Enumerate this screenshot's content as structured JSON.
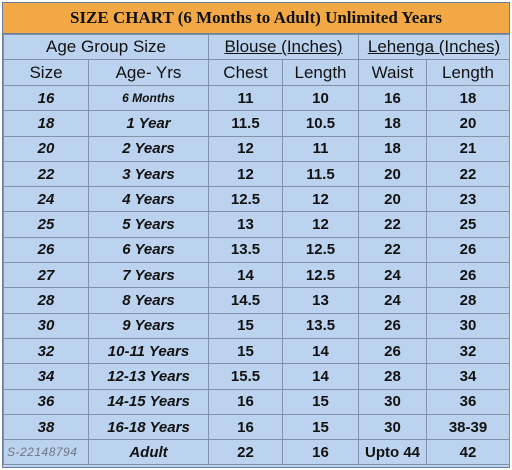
{
  "title": "SIZE CHART (6 Months to Adult) Unlimited Years",
  "groups": {
    "age": "Age Group Size",
    "blouse": "Blouse (Inches)",
    "lehenga": "Lehenga (Inches)"
  },
  "columns": {
    "size": "Size",
    "age": "Age- Yrs",
    "chest": "Chest",
    "blouse_length": "Length",
    "waist": "Waist",
    "lehenga_length": "Length"
  },
  "rows": [
    {
      "size": "16",
      "age": "6 Months",
      "chest": "11",
      "blouse_length": "10",
      "waist": "16",
      "lehenga_length": "18"
    },
    {
      "size": "18",
      "age": "1 Year",
      "chest": "11.5",
      "blouse_length": "10.5",
      "waist": "18",
      "lehenga_length": "20"
    },
    {
      "size": "20",
      "age": "2 Years",
      "chest": "12",
      "blouse_length": "11",
      "waist": "18",
      "lehenga_length": "21"
    },
    {
      "size": "22",
      "age": "3 Years",
      "chest": "12",
      "blouse_length": "11.5",
      "waist": "20",
      "lehenga_length": "22"
    },
    {
      "size": "24",
      "age": "4 Years",
      "chest": "12.5",
      "blouse_length": "12",
      "waist": "20",
      "lehenga_length": "23"
    },
    {
      "size": "25",
      "age": "5 Years",
      "chest": "13",
      "blouse_length": "12",
      "waist": "22",
      "lehenga_length": "25"
    },
    {
      "size": "26",
      "age": "6 Years",
      "chest": "13.5",
      "blouse_length": "12.5",
      "waist": "22",
      "lehenga_length": "26"
    },
    {
      "size": "27",
      "age": "7 Years",
      "chest": "14",
      "blouse_length": "12.5",
      "waist": "24",
      "lehenga_length": "26"
    },
    {
      "size": "28",
      "age": "8 Years",
      "chest": "14.5",
      "blouse_length": "13",
      "waist": "24",
      "lehenga_length": "28"
    },
    {
      "size": "30",
      "age": "9 Years",
      "chest": "15",
      "blouse_length": "13.5",
      "waist": "26",
      "lehenga_length": "30"
    },
    {
      "size": "32",
      "age": "10-11 Years",
      "chest": "15",
      "blouse_length": "14",
      "waist": "26",
      "lehenga_length": "32"
    },
    {
      "size": "34",
      "age": "12-13 Years",
      "chest": "15.5",
      "blouse_length": "14",
      "waist": "28",
      "lehenga_length": "34"
    },
    {
      "size": "36",
      "age": "14-15 Years",
      "chest": "16",
      "blouse_length": "15",
      "waist": "30",
      "lehenga_length": "36"
    },
    {
      "size": "38",
      "age": "16-18 Years",
      "chest": "16",
      "blouse_length": "15",
      "waist": "30",
      "lehenga_length": "38-39"
    },
    {
      "size": "",
      "age": "Adult",
      "chest": "22",
      "blouse_length": "16",
      "waist": "Upto 44",
      "lehenga_length": "42"
    }
  ],
  "watermark": "S-22148794"
}
